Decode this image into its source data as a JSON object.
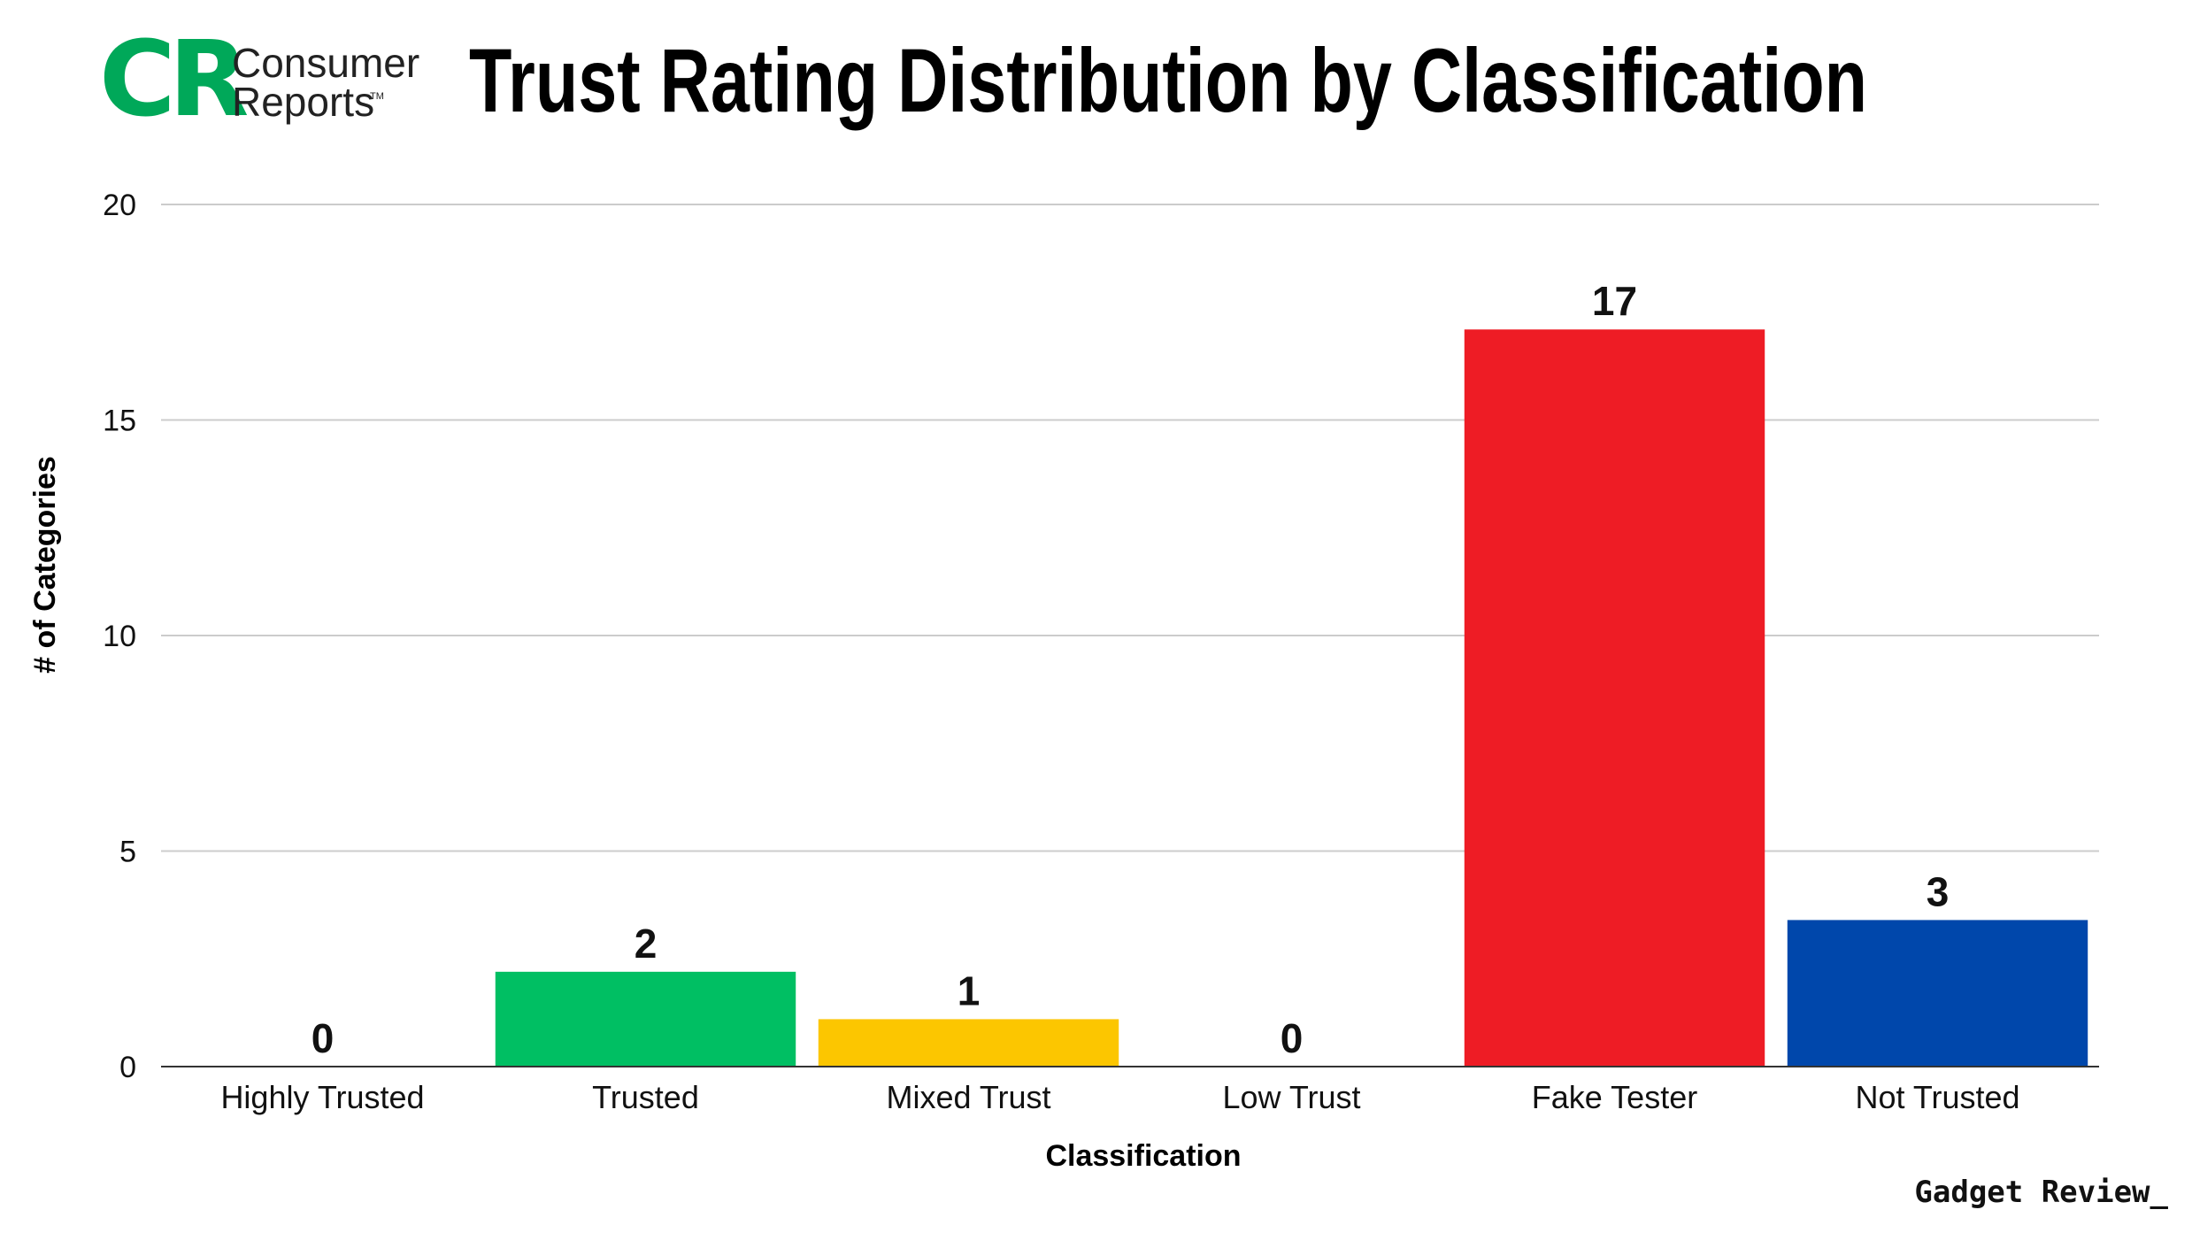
{
  "brand": {
    "logo_mark": "CR",
    "logo_line1": "Consumer",
    "logo_line2": "Reports",
    "logo_tm": "TM",
    "logo_color": "#00a859",
    "watermark": "Gadget Review_"
  },
  "chart_data": {
    "type": "bar",
    "title": "Trust Rating Distribution by Classification",
    "xlabel": "Classification",
    "ylabel": "# of Categories",
    "categories": [
      "Highly Trusted",
      "Trusted",
      "Mixed Trust",
      "Low Trust",
      "Fake Tester",
      "Not Trusted"
    ],
    "values": [
      0,
      2.2,
      1.1,
      0,
      17.1,
      3.4
    ],
    "value_labels": [
      "0",
      "2",
      "1",
      "0",
      "17",
      "3"
    ],
    "colors": [
      "#00bf63",
      "#00bf63",
      "#fcc600",
      "#cccccc",
      "#ee1c25",
      "#0047ab"
    ],
    "ylim": [
      0,
      20
    ],
    "yticks": [
      0,
      5,
      10,
      15,
      20
    ],
    "ytick_labels": [
      "0",
      "5",
      "10",
      "15",
      "20"
    ],
    "grid": true,
    "legend": "none"
  }
}
